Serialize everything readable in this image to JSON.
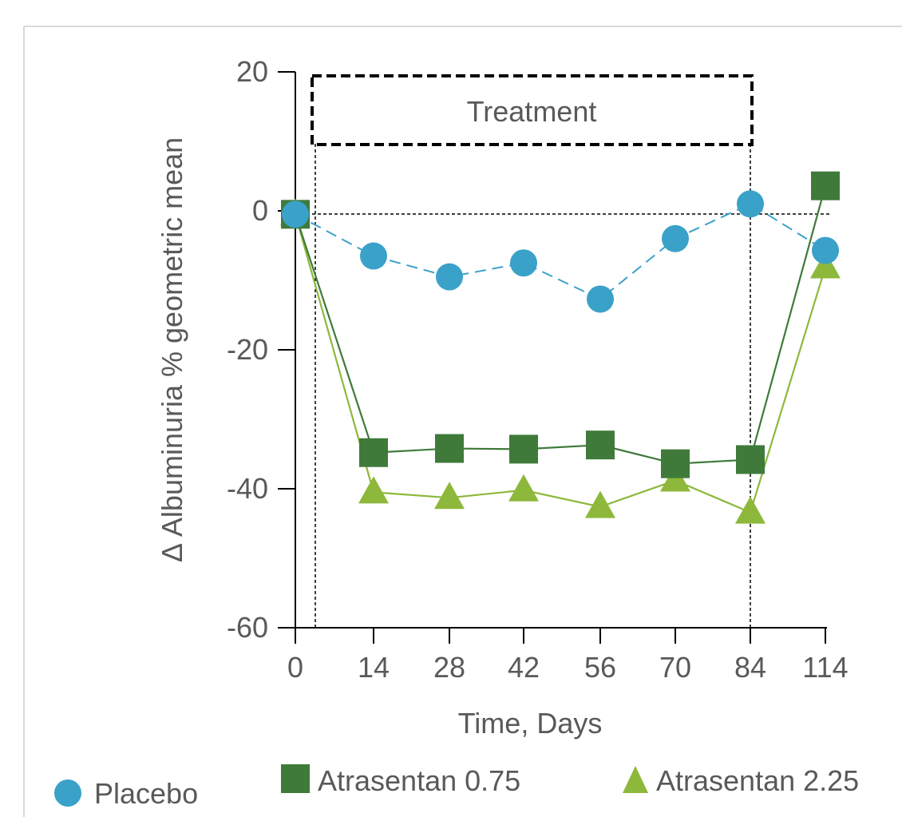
{
  "colors": {
    "placebo": "#3aa1c9",
    "atrasentan_075": "#3f7a3a",
    "atrasentan_225": "#8db83b",
    "axis": "#000000",
    "text": "#595959",
    "frame": "#d9d9d9"
  },
  "chart_data": {
    "type": "line",
    "xlabel": "Time, Days",
    "ylabel": "Δ Albuminuria % geometric mean",
    "categories": [
      "0",
      "14",
      "28",
      "42",
      "56",
      "70",
      "84",
      "114"
    ],
    "ylim": [
      -60,
      20
    ],
    "yticks": [
      "20",
      "0",
      "-20",
      "-40",
      "-60"
    ],
    "grid": false,
    "legend_position": "bottom",
    "series": [
      {
        "name": "Placebo",
        "marker": "circle",
        "line": "dashed",
        "values": [
          -0.5,
          -6.5,
          -9.5,
          -7.5,
          -12.7,
          -4,
          1,
          -5.7
        ]
      },
      {
        "name": "Atrasentan 0.75",
        "marker": "square",
        "line": "solid",
        "values": [
          -0.5,
          -34.8,
          -34.2,
          -34.3,
          -33.7,
          -36.4,
          -35.8,
          3.6
        ]
      },
      {
        "name": "Atrasentan 2.25",
        "marker": "triangle",
        "line": "solid",
        "values": [
          -0.5,
          -40.5,
          -41.3,
          -40.2,
          -42.6,
          -38.8,
          -43.4,
          -8.1
        ]
      }
    ],
    "annotations": {
      "treatment_label": "Treatment"
    }
  }
}
